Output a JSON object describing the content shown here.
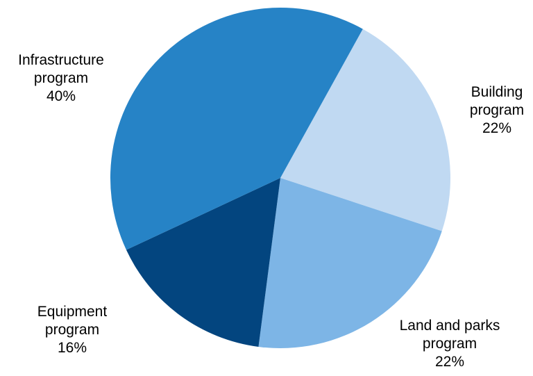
{
  "chart_data": {
    "type": "pie",
    "title": "",
    "start_angle_deg": 61,
    "direction": "clockwise",
    "slices": [
      {
        "label_lines": [
          "Building",
          "program"
        ],
        "value": 22,
        "value_label": "22%",
        "color": "#c0d9f2"
      },
      {
        "label_lines": [
          "Land and parks",
          "program"
        ],
        "value": 22,
        "value_label": "22%",
        "color": "#7db5e6"
      },
      {
        "label_lines": [
          "Equipment",
          "program"
        ],
        "value": 16,
        "value_label": "16%",
        "color": "#03457f"
      },
      {
        "label_lines": [
          "Infrastructure",
          "program"
        ],
        "value": 40,
        "value_label": "40%",
        "color": "#2683c6"
      }
    ]
  }
}
